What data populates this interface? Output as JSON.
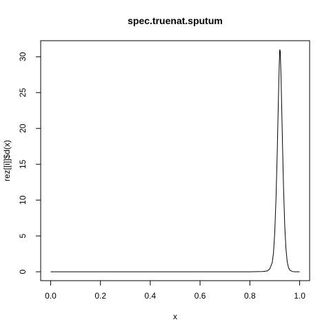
{
  "chart_data": {
    "type": "line",
    "title": "spec.truenat.sputum",
    "xlabel": "x",
    "ylabel": "rez[[i]]$d(x)",
    "xlim": [
      -0.04,
      1.04
    ],
    "ylim": [
      -1.24,
      32.24
    ],
    "grid": false,
    "x_ticks": [
      0.0,
      0.2,
      0.4,
      0.6,
      0.8,
      1.0
    ],
    "x_tick_labels": [
      "0.0",
      "0.2",
      "0.4",
      "0.6",
      "0.8",
      "1.0"
    ],
    "y_ticks": [
      0,
      5,
      10,
      15,
      20,
      25,
      30
    ],
    "y_tick_labels": [
      "0",
      "5",
      "10",
      "15",
      "20",
      "25",
      "30"
    ],
    "series": [
      {
        "color": "#000000",
        "x": [
          0.0,
          0.1,
          0.2,
          0.3,
          0.4,
          0.5,
          0.6,
          0.7,
          0.8,
          0.85,
          0.87,
          0.88,
          0.89,
          0.895,
          0.9,
          0.905,
          0.91,
          0.915,
          0.918,
          0.92,
          0.922,
          0.925,
          0.93,
          0.935,
          0.94,
          0.945,
          0.95,
          0.955,
          0.96,
          0.97,
          0.98,
          1.0
        ],
        "y": [
          0,
          0,
          0,
          0,
          0,
          0,
          0,
          0,
          0,
          0.03,
          0.12,
          0.4,
          1.3,
          2.7,
          5.5,
          10.2,
          16.8,
          24.5,
          28.9,
          31.0,
          30.8,
          27.5,
          19.5,
          12.0,
          6.5,
          3.2,
          1.4,
          0.6,
          0.25,
          0.04,
          0.0,
          0
        ]
      }
    ]
  }
}
